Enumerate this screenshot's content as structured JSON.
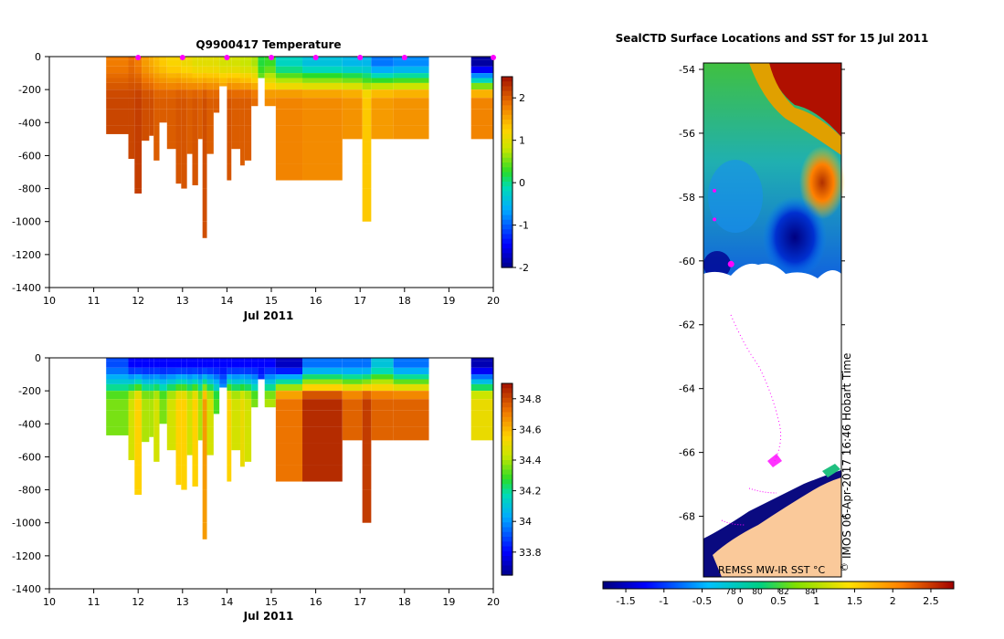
{
  "chart_data": [
    {
      "type": "heatmap",
      "title": "Q9900417  Temperature",
      "variable": "temperature",
      "xlabel": "Jul 2011",
      "xlim": [
        10,
        20
      ],
      "ylim": [
        -1400,
        0
      ],
      "xticks": [
        "10",
        "11",
        "12",
        "13",
        "14",
        "15",
        "16",
        "17",
        "18",
        "19",
        "20"
      ],
      "yticks": [
        "0",
        "-200",
        "-400",
        "-600",
        "-800",
        "-1000",
        "-1200",
        "-1400"
      ],
      "colorbar": {
        "range": [
          -2,
          2.5
        ],
        "ticks": [
          "2",
          "1",
          "0",
          "-1",
          "-2"
        ]
      },
      "markers": [
        12,
        13,
        14,
        15,
        16,
        17,
        18,
        20
      ],
      "profiles": [
        {
          "x0": 11.28,
          "x1": 11.78,
          "depth": 470,
          "surface": 1.8,
          "deep": 2.15
        },
        {
          "x0": 11.78,
          "x1": 11.92,
          "depth": 620,
          "surface": 1.9,
          "deep": 2.15
        },
        {
          "x0": 11.92,
          "x1": 12.08,
          "depth": 830,
          "surface": 1.8,
          "deep": 2.2
        },
        {
          "x0": 12.08,
          "x1": 12.25,
          "depth": 510,
          "surface": 1.6,
          "deep": 2.1
        },
        {
          "x0": 12.25,
          "x1": 12.35,
          "depth": 480,
          "surface": 1.5,
          "deep": 2.1
        },
        {
          "x0": 12.35,
          "x1": 12.48,
          "depth": 630,
          "surface": 1.4,
          "deep": 2.0
        },
        {
          "x0": 12.48,
          "x1": 12.65,
          "depth": 400,
          "surface": 1.3,
          "deep": 2.0
        },
        {
          "x0": 12.65,
          "x1": 12.85,
          "depth": 560,
          "surface": 1.2,
          "deep": 2.0
        },
        {
          "x0": 12.85,
          "x1": 12.97,
          "depth": 770,
          "surface": 1.2,
          "deep": 2.05
        },
        {
          "x0": 12.97,
          "x1": 13.1,
          "depth": 800,
          "surface": 1.1,
          "deep": 2.05
        },
        {
          "x0": 13.1,
          "x1": 13.22,
          "depth": 590,
          "surface": 1.1,
          "deep": 2.0
        },
        {
          "x0": 13.22,
          "x1": 13.35,
          "depth": 780,
          "surface": 1.0,
          "deep": 2.05
        },
        {
          "x0": 13.35,
          "x1": 13.45,
          "depth": 500,
          "surface": 1.0,
          "deep": 2.0
        },
        {
          "x0": 13.45,
          "x1": 13.55,
          "depth": 1100,
          "surface": 1.0,
          "deep": 2.1
        },
        {
          "x0": 13.55,
          "x1": 13.7,
          "depth": 590,
          "surface": 1.0,
          "deep": 2.0
        },
        {
          "x0": 13.7,
          "x1": 13.83,
          "depth": 340,
          "surface": 1.0,
          "deep": 2.0
        },
        {
          "x0": 13.83,
          "x1": 14.0,
          "depth": 180,
          "surface": 0.9,
          "deep": 1.9
        },
        {
          "x0": 14.0,
          "x1": 14.1,
          "depth": 750,
          "surface": 0.9,
          "deep": 2.05
        },
        {
          "x0": 14.1,
          "x1": 14.3,
          "depth": 560,
          "surface": 0.9,
          "deep": 2.0
        },
        {
          "x0": 14.3,
          "x1": 14.4,
          "depth": 660,
          "surface": 0.8,
          "deep": 2.0
        },
        {
          "x0": 14.4,
          "x1": 14.55,
          "depth": 630,
          "surface": 0.8,
          "deep": 2.0
        },
        {
          "x0": 14.55,
          "x1": 14.7,
          "depth": 300,
          "surface": 0.7,
          "deep": 1.9
        },
        {
          "x0": 14.7,
          "x1": 14.85,
          "depth": 130,
          "surface": 0.2,
          "deep": 1.0
        },
        {
          "x0": 14.85,
          "x1": 15.1,
          "depth": 300,
          "surface": 0.3,
          "deep": 1.7
        },
        {
          "x0": 15.1,
          "x1": 15.7,
          "depth": 750,
          "surface": -0.2,
          "deep": 1.75
        },
        {
          "x0": 15.7,
          "x1": 16.6,
          "depth": 750,
          "surface": -0.4,
          "deep": 1.7
        },
        {
          "x0": 16.6,
          "x1": 17.05,
          "depth": 500,
          "surface": -0.5,
          "deep": 1.65
        },
        {
          "x0": 17.05,
          "x1": 17.25,
          "depth": 1000,
          "surface": -0.5,
          "deep": 1.3
        },
        {
          "x0": 17.25,
          "x1": 17.75,
          "depth": 500,
          "surface": -0.9,
          "deep": 1.6
        },
        {
          "x0": 17.75,
          "x1": 18.55,
          "depth": 500,
          "surface": -0.8,
          "deep": 1.65
        },
        {
          "x0": 19.5,
          "x1": 20.05,
          "depth": 500,
          "surface": -1.9,
          "deep": 1.75
        }
      ]
    },
    {
      "type": "heatmap",
      "title": "",
      "variable": "salinity",
      "xlabel": "Jul 2011",
      "xlim": [
        10,
        20
      ],
      "ylim": [
        -1400,
        0
      ],
      "xticks": [
        "10",
        "11",
        "12",
        "13",
        "14",
        "15",
        "16",
        "17",
        "18",
        "19",
        "20"
      ],
      "yticks": [
        "0",
        "-200",
        "-400",
        "-600",
        "-800",
        "-1000",
        "-1200",
        "-1400"
      ],
      "colorbar": {
        "range": [
          33.65,
          34.9
        ],
        "ticks": [
          "34.8",
          "34.6",
          "34.4",
          "34.2",
          "34",
          "33.8"
        ]
      },
      "profiles": [
        {
          "x0": 11.28,
          "x1": 11.78,
          "depth": 470,
          "surface": 33.9,
          "deep": 34.35
        },
        {
          "x0": 11.78,
          "x1": 11.92,
          "depth": 620,
          "surface": 33.8,
          "deep": 34.45
        },
        {
          "x0": 11.92,
          "x1": 12.08,
          "depth": 830,
          "surface": 33.8,
          "deep": 34.55
        },
        {
          "x0": 12.08,
          "x1": 12.25,
          "depth": 510,
          "surface": 33.8,
          "deep": 34.4
        },
        {
          "x0": 12.25,
          "x1": 12.35,
          "depth": 480,
          "surface": 33.8,
          "deep": 34.4
        },
        {
          "x0": 12.35,
          "x1": 12.48,
          "depth": 630,
          "surface": 33.8,
          "deep": 34.45
        },
        {
          "x0": 12.48,
          "x1": 12.65,
          "depth": 400,
          "surface": 33.8,
          "deep": 34.35
        },
        {
          "x0": 12.65,
          "x1": 12.85,
          "depth": 560,
          "surface": 33.8,
          "deep": 34.45
        },
        {
          "x0": 12.85,
          "x1": 12.97,
          "depth": 770,
          "surface": 33.8,
          "deep": 34.55
        },
        {
          "x0": 12.97,
          "x1": 13.1,
          "depth": 800,
          "surface": 33.8,
          "deep": 34.55
        },
        {
          "x0": 13.1,
          "x1": 13.22,
          "depth": 590,
          "surface": 33.8,
          "deep": 34.45
        },
        {
          "x0": 13.22,
          "x1": 13.35,
          "depth": 780,
          "surface": 33.8,
          "deep": 34.55
        },
        {
          "x0": 13.35,
          "x1": 13.45,
          "depth": 500,
          "surface": 33.8,
          "deep": 34.4
        },
        {
          "x0": 13.45,
          "x1": 13.55,
          "depth": 1100,
          "surface": 33.8,
          "deep": 34.65
        },
        {
          "x0": 13.55,
          "x1": 13.7,
          "depth": 590,
          "surface": 33.8,
          "deep": 34.45
        },
        {
          "x0": 13.7,
          "x1": 13.83,
          "depth": 340,
          "surface": 33.8,
          "deep": 34.3
        },
        {
          "x0": 13.83,
          "x1": 14.0,
          "depth": 180,
          "surface": 33.8,
          "deep": 34.1
        },
        {
          "x0": 14.0,
          "x1": 14.1,
          "depth": 750,
          "surface": 33.8,
          "deep": 34.55
        },
        {
          "x0": 14.1,
          "x1": 14.3,
          "depth": 560,
          "surface": 33.8,
          "deep": 34.45
        },
        {
          "x0": 14.3,
          "x1": 14.4,
          "depth": 660,
          "surface": 33.8,
          "deep": 34.5
        },
        {
          "x0": 14.4,
          "x1": 14.55,
          "depth": 630,
          "surface": 33.8,
          "deep": 34.45
        },
        {
          "x0": 14.55,
          "x1": 14.7,
          "depth": 300,
          "surface": 33.8,
          "deep": 34.35
        },
        {
          "x0": 14.7,
          "x1": 14.85,
          "depth": 130,
          "surface": 33.8,
          "deep": 34.0
        },
        {
          "x0": 14.85,
          "x1": 15.1,
          "depth": 300,
          "surface": 33.8,
          "deep": 34.4
        },
        {
          "x0": 15.1,
          "x1": 15.7,
          "depth": 750,
          "surface": 33.72,
          "deep": 34.72
        },
        {
          "x0": 15.7,
          "x1": 16.6,
          "depth": 750,
          "surface": 33.95,
          "deep": 34.85
        },
        {
          "x0": 16.6,
          "x1": 17.05,
          "depth": 500,
          "surface": 33.95,
          "deep": 34.75
        },
        {
          "x0": 17.05,
          "x1": 17.25,
          "depth": 1000,
          "surface": 33.95,
          "deep": 34.82
        },
        {
          "x0": 17.25,
          "x1": 17.75,
          "depth": 500,
          "surface": 34.1,
          "deep": 34.75
        },
        {
          "x0": 17.75,
          "x1": 18.55,
          "depth": 500,
          "surface": 33.95,
          "deep": 34.75
        },
        {
          "x0": 19.5,
          "x1": 20.05,
          "depth": 500,
          "surface": 33.7,
          "deep": 34.5
        }
      ]
    },
    {
      "type": "heatmap",
      "title": "SealCTD Surface Locations and SST for 15 Jul 2011",
      "variable": "sst",
      "yticks": [
        "-54",
        "-56",
        "-58",
        "-60",
        "-62",
        "-64",
        "-66",
        "-68"
      ],
      "ylim": [
        -69.9,
        -53.8
      ],
      "colorbar": {
        "range": [
          -1.8,
          2.8
        ],
        "ticks": [
          "-1.5",
          "-1",
          "-0.5",
          "0",
          "0.5",
          "1",
          "1.5",
          "2",
          "2.5"
        ],
        "inner_ticks": [
          "78",
          "80",
          "82",
          "84"
        ]
      },
      "credit": "REMSS MW-IR SST °C",
      "stamp": "IMOS 06-Apr-2017 16:46 Hobart Time",
      "copyright": "©",
      "locations": [
        {
          "x": 0.2,
          "lat": -60.1
        },
        {
          "x": 0.08,
          "lat": -58.7
        },
        {
          "x": 0.08,
          "lat": -57.8
        }
      ]
    }
  ]
}
